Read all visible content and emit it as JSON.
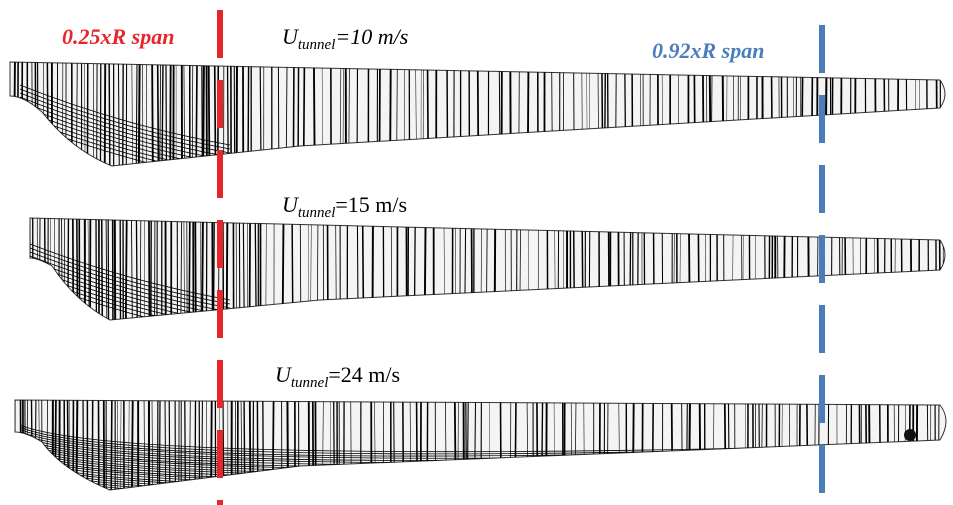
{
  "annotations": {
    "root_span": "0.25xR span",
    "tip_span": "0.92xR span"
  },
  "panels": [
    {
      "symbol": "U",
      "subscript": "tunnel",
      "value": "=10 m/s"
    },
    {
      "symbol": "U",
      "subscript": "tunnel",
      "value": "=15 m/s"
    },
    {
      "symbol": "U",
      "subscript": "tunnel",
      "value": "=24 m/s"
    }
  ]
}
